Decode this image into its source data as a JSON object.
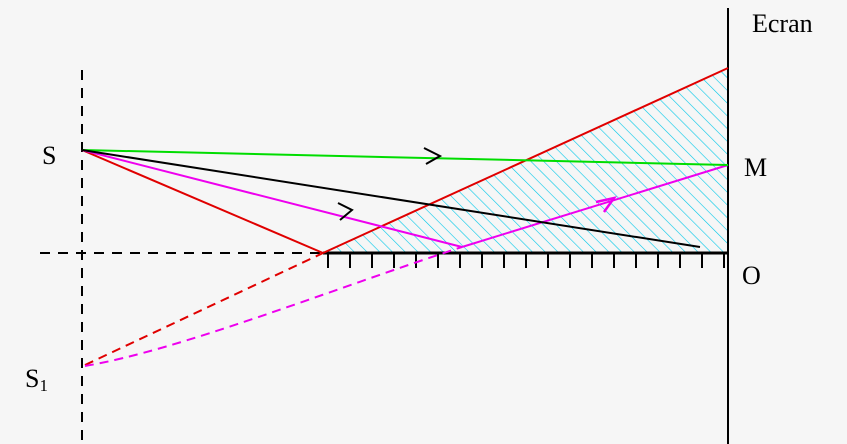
{
  "labels": {
    "screen": "Ecran",
    "source": "S",
    "image_source": "S",
    "image_source_sub": "1",
    "point_m": "M",
    "point_o": "O"
  },
  "colors": {
    "background": "#f6f6f6",
    "axis": "#000000",
    "guide": "#000000",
    "ray_red": "#e00000",
    "ray_green": "#00dd00",
    "ray_magenta": "#ee00ee",
    "ray_black": "#000000",
    "hatch": "#00c8e8"
  }
}
